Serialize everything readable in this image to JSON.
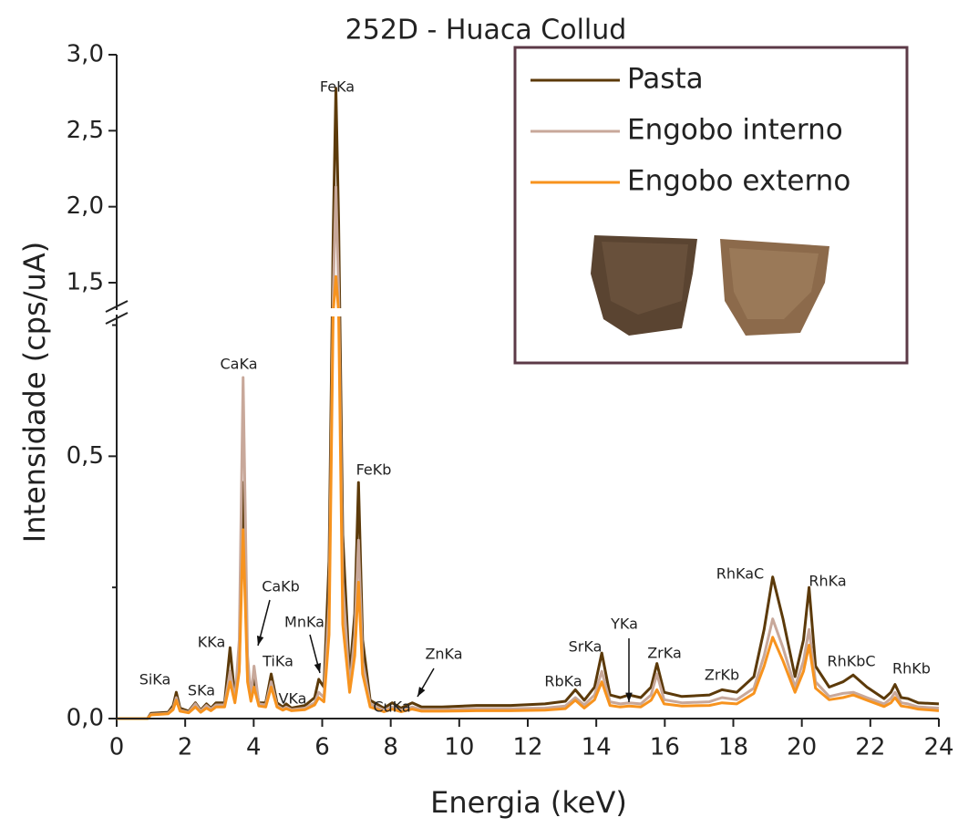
{
  "chart_data": {
    "type": "line",
    "title": "252D - Huaca Collud",
    "x_label": "Energia (keV)",
    "y_label": "Intensidade (cps/uA)",
    "x": [
      0,
      0.9,
      1.0,
      1.5,
      1.65,
      1.74,
      1.85,
      2.1,
      2.3,
      2.45,
      2.62,
      2.75,
      2.9,
      3.15,
      3.31,
      3.45,
      3.58,
      3.69,
      3.82,
      3.92,
      4.01,
      4.15,
      4.35,
      4.51,
      4.68,
      4.85,
      4.95,
      5.1,
      5.5,
      5.78,
      5.9,
      6.05,
      6.2,
      6.32,
      6.4,
      6.48,
      6.6,
      6.8,
      6.95,
      7.06,
      7.18,
      7.4,
      7.8,
      8.04,
      8.3,
      8.63,
      8.9,
      9.5,
      10.5,
      11.5,
      12.5,
      13.1,
      13.39,
      13.65,
      13.95,
      14.16,
      14.4,
      14.7,
      14.96,
      15.3,
      15.6,
      15.77,
      15.98,
      16.5,
      17.3,
      17.67,
      18.1,
      18.6,
      18.9,
      19.15,
      19.45,
      19.8,
      20.05,
      20.21,
      20.4,
      20.8,
      21.2,
      21.5,
      21.9,
      22.4,
      22.6,
      22.72,
      22.9,
      23.1,
      23.4,
      24
    ],
    "series": [
      {
        "name": "Pasta",
        "color": "#5c3a0a",
        "values": [
          0,
          0,
          0.01,
          0.012,
          0.025,
          0.05,
          0.02,
          0.014,
          0.03,
          0.016,
          0.028,
          0.02,
          0.03,
          0.03,
          0.135,
          0.04,
          0.1,
          0.45,
          0.08,
          0.04,
          0.08,
          0.03,
          0.03,
          0.085,
          0.03,
          0.022,
          0.028,
          0.02,
          0.025,
          0.04,
          0.075,
          0.06,
          0.3,
          1.8,
          2.78,
          1.9,
          0.35,
          0.08,
          0.2,
          0.45,
          0.15,
          0.035,
          0.02,
          0.03,
          0.02,
          0.03,
          0.022,
          0.022,
          0.025,
          0.025,
          0.028,
          0.033,
          0.055,
          0.035,
          0.06,
          0.125,
          0.045,
          0.04,
          0.045,
          0.04,
          0.06,
          0.105,
          0.05,
          0.042,
          0.045,
          0.055,
          0.05,
          0.08,
          0.17,
          0.27,
          0.19,
          0.08,
          0.15,
          0.25,
          0.1,
          0.06,
          0.07,
          0.083,
          0.06,
          0.038,
          0.05,
          0.065,
          0.04,
          0.038,
          0.03,
          0.028
        ]
      },
      {
        "name": "Engobo interno",
        "color": "#c8a89a",
        "values": [
          0,
          0,
          0.008,
          0.01,
          0.02,
          0.04,
          0.016,
          0.012,
          0.028,
          0.014,
          0.025,
          0.018,
          0.026,
          0.026,
          0.09,
          0.035,
          0.15,
          0.65,
          0.12,
          0.04,
          0.1,
          0.028,
          0.026,
          0.07,
          0.025,
          0.018,
          0.022,
          0.017,
          0.02,
          0.03,
          0.05,
          0.04,
          0.22,
          1.4,
          2.13,
          1.45,
          0.26,
          0.06,
          0.16,
          0.34,
          0.11,
          0.028,
          0.016,
          0.022,
          0.016,
          0.022,
          0.017,
          0.017,
          0.019,
          0.019,
          0.02,
          0.024,
          0.04,
          0.026,
          0.045,
          0.09,
          0.032,
          0.028,
          0.03,
          0.028,
          0.045,
          0.085,
          0.036,
          0.03,
          0.032,
          0.04,
          0.036,
          0.058,
          0.12,
          0.19,
          0.135,
          0.06,
          0.11,
          0.17,
          0.07,
          0.042,
          0.048,
          0.05,
          0.04,
          0.028,
          0.038,
          0.05,
          0.03,
          0.028,
          0.022,
          0.02
        ]
      },
      {
        "name": "Engobo externo",
        "color": "#f7931e",
        "values": [
          0,
          0,
          0.007,
          0.009,
          0.017,
          0.035,
          0.014,
          0.011,
          0.022,
          0.012,
          0.02,
          0.015,
          0.022,
          0.022,
          0.07,
          0.03,
          0.09,
          0.36,
          0.07,
          0.033,
          0.06,
          0.024,
          0.022,
          0.06,
          0.022,
          0.016,
          0.019,
          0.015,
          0.017,
          0.026,
          0.04,
          0.032,
          0.16,
          1.0,
          1.54,
          1.05,
          0.18,
          0.05,
          0.12,
          0.26,
          0.085,
          0.022,
          0.013,
          0.018,
          0.013,
          0.018,
          0.014,
          0.014,
          0.015,
          0.015,
          0.016,
          0.019,
          0.035,
          0.02,
          0.036,
          0.07,
          0.025,
          0.022,
          0.024,
          0.022,
          0.035,
          0.055,
          0.028,
          0.024,
          0.025,
          0.03,
          0.028,
          0.048,
          0.1,
          0.155,
          0.11,
          0.05,
          0.09,
          0.14,
          0.058,
          0.036,
          0.04,
          0.045,
          0.035,
          0.023,
          0.03,
          0.04,
          0.024,
          0.022,
          0.018,
          0.015
        ]
      }
    ],
    "xlim": [
      0,
      24
    ],
    "xticks": [
      0,
      2,
      4,
      6,
      8,
      10,
      12,
      14,
      16,
      18,
      20,
      22,
      24
    ],
    "ylim": [
      0,
      3.0
    ],
    "y_break": [
      0.77,
      1.32
    ],
    "yticks": [
      {
        "value": 0,
        "label": "0,0"
      },
      {
        "value": 0.5,
        "label": "0,5"
      },
      {
        "value": 1.5,
        "label": "1,5"
      },
      {
        "value": 2.0,
        "label": "2,0"
      },
      {
        "value": 2.5,
        "label": "2,5"
      },
      {
        "value": 3.0,
        "label": "3,0"
      }
    ],
    "y_minor_ticks": [
      0.25,
      0.75
    ],
    "annotations": [
      "SiKa",
      "SKa",
      "KKa",
      "CaKa",
      "CaKb",
      "TiKa",
      "VKa",
      "MnKa",
      "FeKa",
      "FeKb",
      "CuKa",
      "ZnKa",
      "RbKa",
      "SrKa",
      "YKa",
      "ZrKa",
      "ZrKb",
      "RhKaC",
      "RhKa",
      "RhKbC",
      "RhKb"
    ]
  }
}
